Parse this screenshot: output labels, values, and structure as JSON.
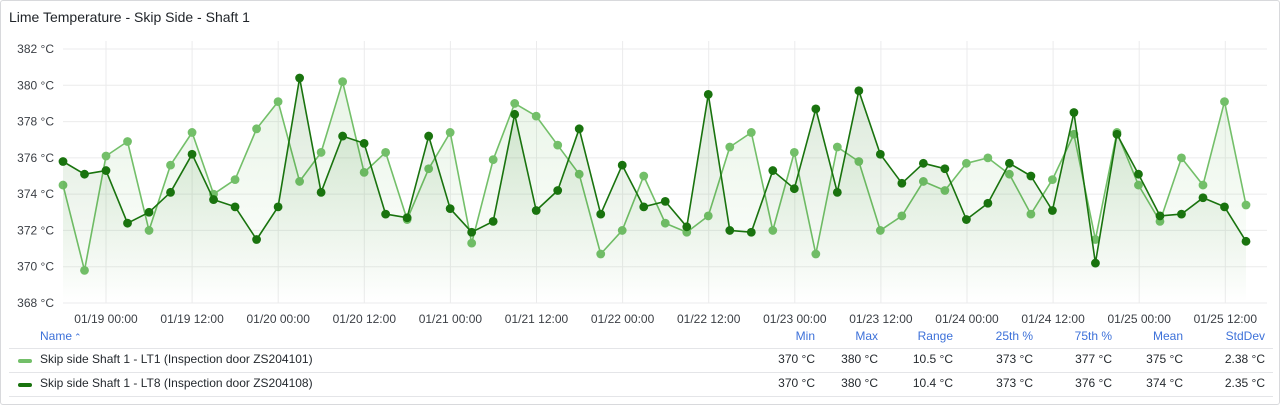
{
  "panel": {
    "title": "Lime Temperature - Skip Side - Shaft 1"
  },
  "chart_data": {
    "type": "line",
    "title": "Lime Temperature - Skip Side - Shaft 1",
    "y_unit": "°C",
    "ylim": [
      368,
      382
    ],
    "y_ticks": [
      "382 °C",
      "380 °C",
      "378 °C",
      "376 °C",
      "374 °C",
      "372 °C",
      "370 °C",
      "368 °C"
    ],
    "xlim": [
      "2023-01-18 18:00",
      "2023-01-25 15:00"
    ],
    "x_ticks": [
      "01/19 00:00",
      "01/19 12:00",
      "01/20 00:00",
      "01/20 12:00",
      "01/21 00:00",
      "01/21 12:00",
      "01/22 00:00",
      "01/22 12:00",
      "01/23 00:00",
      "01/23 12:00",
      "01/24 00:00",
      "01/24 12:00",
      "01/25 00:00",
      "01/25 12:00"
    ],
    "grid": true,
    "legend_placement": "bottom",
    "x_hours_per_step": 3,
    "series": [
      {
        "name": "Skip side Shaft 1 - LT1 (Inspection door ZS204101)",
        "color": "#73bf69",
        "values": [
          374.5,
          369.8,
          376.1,
          376.9,
          372.0,
          375.6,
          377.4,
          374.0,
          374.8,
          377.6,
          379.1,
          374.7,
          376.3,
          380.2,
          375.2,
          376.3,
          372.6,
          375.4,
          377.4,
          371.3,
          375.9,
          379.0,
          378.3,
          376.7,
          375.1,
          370.7,
          372.0,
          375.0,
          372.4,
          371.9,
          372.8,
          376.6,
          377.4,
          372.0,
          376.3,
          370.7,
          376.6,
          375.8,
          372.0,
          372.8,
          374.7,
          374.2,
          375.7,
          376.0,
          375.1,
          372.9,
          374.8,
          377.3,
          371.5,
          377.4,
          374.5,
          372.5,
          376.0,
          374.5,
          379.1,
          373.4
        ]
      },
      {
        "name": "Skip side Shaft 1 - LT8 (Inspection door ZS204108)",
        "color": "#19730e",
        "values": [
          375.8,
          375.1,
          375.3,
          372.4,
          373.0,
          374.1,
          376.2,
          373.7,
          373.3,
          371.5,
          373.3,
          380.4,
          374.1,
          377.2,
          376.8,
          372.9,
          372.7,
          377.2,
          373.2,
          371.9,
          372.5,
          378.4,
          373.1,
          374.2,
          377.6,
          372.9,
          375.6,
          373.3,
          373.6,
          372.2,
          379.5,
          372.0,
          371.9,
          375.3,
          374.3,
          378.7,
          374.1,
          379.7,
          376.2,
          374.6,
          375.7,
          375.4,
          372.6,
          373.5,
          375.7,
          375.0,
          373.1,
          378.5,
          370.2,
          377.3,
          375.1,
          372.8,
          372.9,
          373.8,
          373.3,
          371.4
        ]
      }
    ]
  },
  "legend": {
    "headers": {
      "name": "Name",
      "min": "Min",
      "max": "Max",
      "range": "Range",
      "p25": "25th %",
      "p75": "75th %",
      "mean": "Mean",
      "stddev": "StdDev"
    },
    "sort_arrow": "⌃",
    "rows": [
      {
        "name": "Skip side Shaft 1 - LT1 (Inspection door ZS204101)",
        "color": "#73bf69",
        "min": "370 °C",
        "max": "380 °C",
        "range": "10.5 °C",
        "p25": "373 °C",
        "p75": "377 °C",
        "mean": "375 °C",
        "stddev": "2.38 °C"
      },
      {
        "name": "Skip side Shaft 1 - LT8 (Inspection door ZS204108)",
        "color": "#19730e",
        "min": "370 °C",
        "max": "380 °C",
        "range": "10.4 °C",
        "p25": "373 °C",
        "p75": "376 °C",
        "mean": "374 °C",
        "stddev": "2.35 °C"
      }
    ]
  }
}
